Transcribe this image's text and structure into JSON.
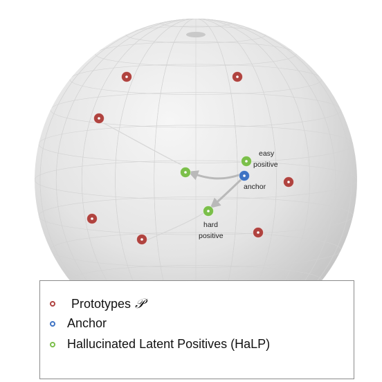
{
  "colors": {
    "prototype": "#b0433f",
    "anchor": "#3f74c4",
    "positive": "#7bbf4a",
    "arrow": "#b9b9b9"
  },
  "labels": {
    "easy_positive": [
      "easy",
      "positive"
    ],
    "anchor": "anchor",
    "hard_positive": [
      "hard",
      "positive"
    ]
  },
  "legend": {
    "prototypes": "Prototypes",
    "prototypes_symbol": "𝒫",
    "anchor": "Anchor",
    "halp": "Hallucinated Latent Positives (HaLP)"
  }
}
